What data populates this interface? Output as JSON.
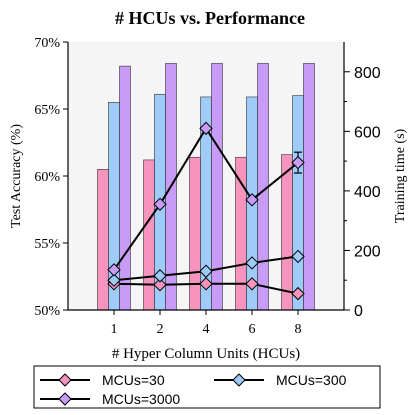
{
  "chart_data": {
    "type": "bar",
    "title": "# HCUs vs. Performance",
    "xlabel": "# Hyper Column Units (HCUs)",
    "ylabel_left": "Test Accuracy (%)",
    "ylabel_right": "Training time (s)",
    "categories": [
      "1",
      "2",
      "4",
      "6",
      "8"
    ],
    "ylim_left": [
      50,
      70
    ],
    "yticks_left": [
      "50%",
      "55%",
      "60%",
      "65%",
      "70%"
    ],
    "ylim_right": [
      0,
      900
    ],
    "yticks_right": [
      "0",
      "200",
      "400",
      "600",
      "800"
    ],
    "grid": false,
    "legend_position": "bottom",
    "bar_series": [
      {
        "name": "MCUs=30",
        "color": "#f794bd",
        "values": [
          60.5,
          61.2,
          61.4,
          61.4,
          61.6
        ]
      },
      {
        "name": "MCUs=300",
        "color": "#9ecbf7",
        "values": [
          65.5,
          66.1,
          65.9,
          65.9,
          66.0
        ]
      },
      {
        "name": "MCUs=3000",
        "color": "#c89bf7",
        "values": [
          68.2,
          68.4,
          68.4,
          68.4,
          68.4
        ]
      }
    ],
    "line_series": [
      {
        "name": "MCUs=30",
        "color": "#f794bd",
        "values": [
          88,
          85,
          88,
          88,
          55
        ]
      },
      {
        "name": "MCUs=300",
        "color": "#9ecbf7",
        "values": [
          100,
          115,
          130,
          158,
          180
        ]
      },
      {
        "name": "MCUs=3000",
        "color": "#c89bf7",
        "values": [
          135,
          355,
          610,
          370,
          495
        ]
      }
    ],
    "error_bar": {
      "series": "MCUs=3000",
      "category": "8",
      "low": 460,
      "high": 530
    },
    "legend": [
      {
        "label": "MCUs=30",
        "color": "#f794bd"
      },
      {
        "label": "MCUs=300",
        "color": "#9ecbf7"
      },
      {
        "label": "MCUs=3000",
        "color": "#c89bf7"
      }
    ]
  }
}
